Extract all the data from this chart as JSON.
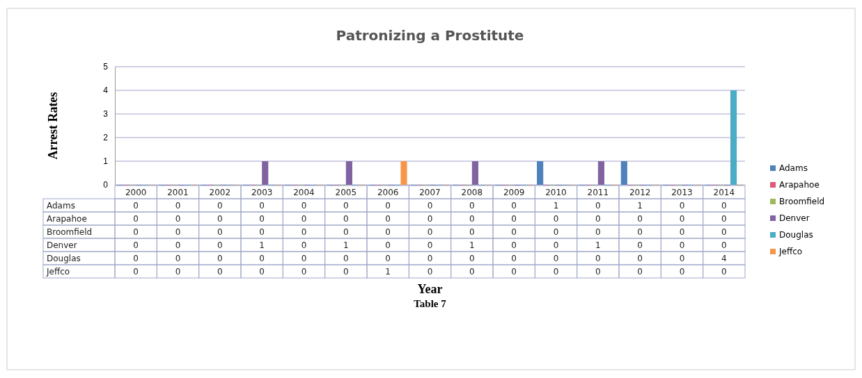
{
  "chart_data": {
    "type": "bar",
    "title": "Patronizing a Prostitute",
    "ylabel": "Arrest Rates",
    "annotations": [
      "Year",
      "Table 7"
    ],
    "categories": [
      "2000",
      "2001",
      "2002",
      "2003",
      "2004",
      "2005",
      "2006",
      "2007",
      "2008",
      "2009",
      "2010",
      "2011",
      "2012",
      "2013",
      "2014"
    ],
    "series": [
      {
        "name": "Adams",
        "color": "#4f81bd",
        "values": [
          0,
          0,
          0,
          0,
          0,
          0,
          0,
          0,
          0,
          0,
          1,
          0,
          1,
          0,
          0
        ]
      },
      {
        "name": "Arapahoe",
        "color": "#e0587a",
        "values": [
          0,
          0,
          0,
          0,
          0,
          0,
          0,
          0,
          0,
          0,
          0,
          0,
          0,
          0,
          0
        ]
      },
      {
        "name": "Broomfield",
        "color": "#9bbb59",
        "values": [
          0,
          0,
          0,
          0,
          0,
          0,
          0,
          0,
          0,
          0,
          0,
          0,
          0,
          0,
          0
        ]
      },
      {
        "name": "Denver",
        "color": "#8064a2",
        "values": [
          0,
          0,
          0,
          1,
          0,
          1,
          0,
          0,
          1,
          0,
          0,
          1,
          0,
          0,
          0
        ]
      },
      {
        "name": "Douglas",
        "color": "#4bacc6",
        "values": [
          0,
          0,
          0,
          0,
          0,
          0,
          0,
          0,
          0,
          0,
          0,
          0,
          0,
          0,
          4
        ]
      },
      {
        "name": "Jeffco",
        "color": "#f79646",
        "values": [
          0,
          0,
          0,
          0,
          0,
          0,
          1,
          0,
          0,
          0,
          0,
          0,
          0,
          0,
          0
        ]
      }
    ],
    "ylim": [
      0,
      5
    ],
    "yticks": [
      0,
      1,
      2,
      3,
      4,
      5
    ],
    "grid": "y",
    "legend": "right",
    "data_labels": true
  }
}
